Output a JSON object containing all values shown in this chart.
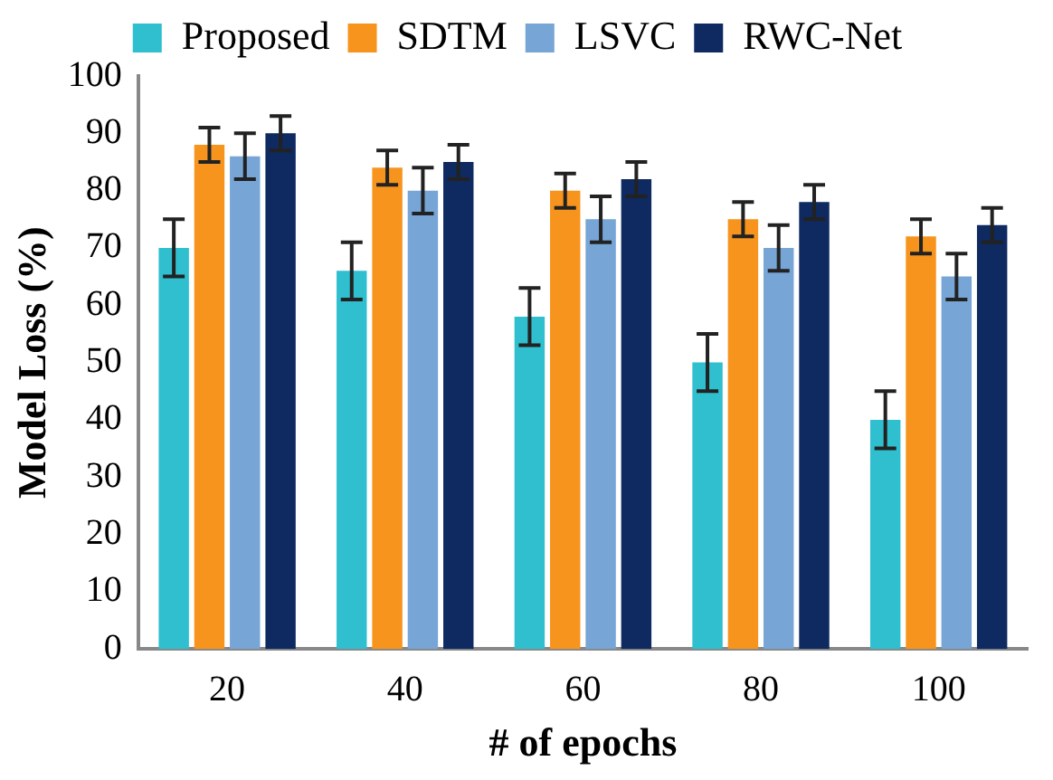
{
  "chart_data": {
    "type": "bar",
    "xlabel": "# of epochs",
    "ylabel": "Model Loss (%)",
    "categories": [
      "20",
      "40",
      "60",
      "80",
      "100"
    ],
    "series": [
      {
        "name": "Proposed",
        "color": "#2fbfcf",
        "values": [
          70,
          66,
          58,
          50,
          40
        ],
        "errors": [
          5,
          5,
          5,
          5,
          5
        ]
      },
      {
        "name": "SDTM",
        "color": "#f7941d",
        "values": [
          88,
          84,
          80,
          75,
          72
        ],
        "errors": [
          3,
          3,
          3,
          3,
          3
        ]
      },
      {
        "name": "LSVC",
        "color": "#76a5d6",
        "values": [
          86,
          80,
          75,
          70,
          65
        ],
        "errors": [
          4,
          4,
          4,
          4,
          4
        ]
      },
      {
        "name": "RWC-Net",
        "color": "#0e2a60",
        "values": [
          90,
          85,
          82,
          78,
          74
        ],
        "errors": [
          3,
          3,
          3,
          3,
          3
        ]
      }
    ],
    "ylim": [
      0,
      100
    ],
    "yticks": [
      0,
      10,
      20,
      30,
      40,
      50,
      60,
      70,
      80,
      90,
      100
    ],
    "grid": false,
    "legend": "top"
  }
}
